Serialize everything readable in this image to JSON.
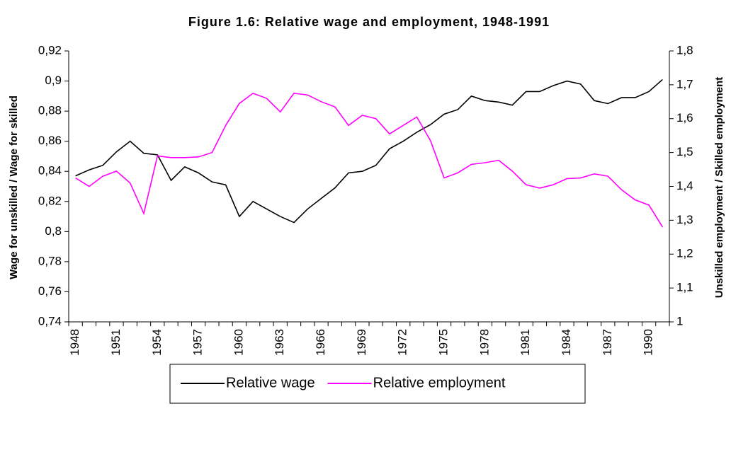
{
  "chart_data": {
    "type": "line",
    "title": "Figure 1.6: Relative wage and employment, 1948-1991",
    "y_label": "Wage for unskilled / Wage for skilled",
    "y2_label": "Unskilled employment / Skilled employment",
    "categories": [
      "1948",
      null,
      null,
      "1951",
      null,
      null,
      "1954",
      null,
      null,
      "1957",
      null,
      null,
      "1960",
      null,
      null,
      "1963",
      null,
      null,
      "1966",
      null,
      null,
      "1969",
      null,
      null,
      "1972",
      null,
      null,
      "1975",
      null,
      null,
      "1978",
      null,
      null,
      "1981",
      null,
      null,
      "1984",
      null,
      null,
      "1987",
      null,
      null,
      "1990",
      null
    ],
    "series": [
      {
        "name": "Relative wage",
        "color": "#000000",
        "axis": "y",
        "values": [
          0.837,
          0.841,
          0.844,
          0.853,
          0.86,
          0.852,
          0.851,
          0.834,
          0.843,
          0.839,
          0.833,
          0.831,
          0.81,
          0.82,
          0.815,
          0.81,
          0.806,
          0.815,
          0.822,
          0.829,
          0.839,
          0.84,
          0.844,
          0.855,
          0.86,
          0.866,
          0.871,
          0.878,
          0.881,
          0.89,
          0.887,
          0.886,
          0.884,
          0.893,
          0.893,
          0.897,
          0.9,
          0.898,
          0.887,
          0.885,
          0.889,
          0.889,
          0.893,
          0.901
        ]
      },
      {
        "name": "Relative employment",
        "color": "#ff00ff",
        "axis": "y2",
        "values": [
          1.425,
          1.4,
          1.43,
          1.445,
          1.41,
          1.32,
          1.49,
          1.485,
          1.485,
          1.487,
          1.5,
          1.58,
          1.645,
          1.675,
          1.66,
          1.62,
          1.675,
          1.67,
          1.65,
          1.635,
          1.58,
          1.61,
          1.6,
          1.555,
          1.58,
          1.605,
          1.535,
          1.425,
          1.44,
          1.465,
          1.47,
          1.477,
          1.445,
          1.405,
          1.395,
          1.405,
          1.423,
          1.425,
          1.437,
          1.43,
          1.39,
          1.36,
          1.345,
          1.28
        ]
      }
    ],
    "ylim": [
      0.74,
      0.92
    ],
    "yticks": [
      {
        "value": 0.74,
        "label": "0,74"
      },
      {
        "value": 0.76,
        "label": "0,76"
      },
      {
        "value": 0.78,
        "label": "0,78"
      },
      {
        "value": 0.8,
        "label": "0,8"
      },
      {
        "value": 0.82,
        "label": "0,82"
      },
      {
        "value": 0.84,
        "label": "0,84"
      },
      {
        "value": 0.86,
        "label": "0,86"
      },
      {
        "value": 0.88,
        "label": "0,88"
      },
      {
        "value": 0.9,
        "label": "0,9"
      },
      {
        "value": 0.92,
        "label": "0,92"
      }
    ],
    "y2lim": [
      1,
      1.8
    ],
    "y2ticks": [
      1,
      {
        "value": 1.1,
        "label": "1,1"
      },
      {
        "value": 1.2,
        "label": "1,2"
      },
      {
        "value": 1.3,
        "label": "1,3"
      },
      {
        "value": 1.4,
        "label": "1,4"
      },
      {
        "value": 1.5,
        "label": "1,5"
      },
      {
        "value": 1.6,
        "label": "1,6"
      },
      {
        "value": 1.7,
        "label": "1,7"
      },
      {
        "value": 1.8,
        "label": "1,8"
      }
    ],
    "grid": false,
    "legend": "bottom"
  }
}
